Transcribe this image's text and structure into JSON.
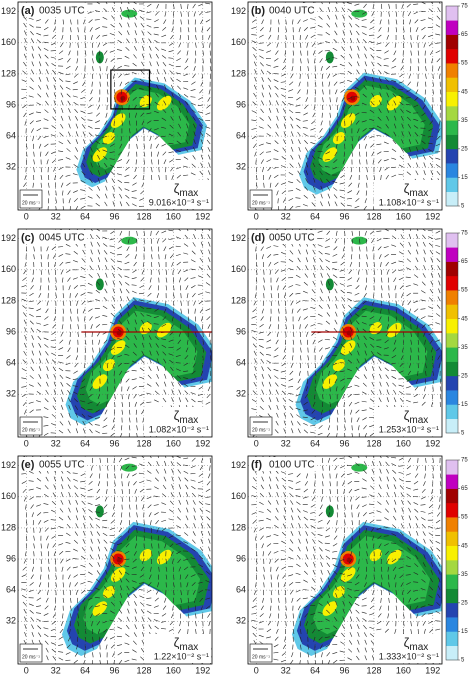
{
  "panels": [
    {
      "label": "(a)",
      "time": "0035 UTC",
      "zeta_symbol": "ζ",
      "zeta_sub": "max",
      "zeta_value": "9.016×10⁻³ s⁻¹",
      "scale_label": "20 ms⁻¹"
    },
    {
      "label": "(b)",
      "time": "0040 UTC",
      "zeta_symbol": "ζ",
      "zeta_sub": "max",
      "zeta_value": "1.108×10⁻² s⁻¹",
      "scale_label": "20 ms⁻¹"
    },
    {
      "label": "(c)",
      "time": "0045 UTC",
      "zeta_symbol": "ζ",
      "zeta_sub": "max",
      "zeta_value": "1.082×10⁻² s⁻¹",
      "scale_label": "20 ms⁻¹"
    },
    {
      "label": "(d)",
      "time": "0050 UTC",
      "zeta_symbol": "ζ",
      "zeta_sub": "max",
      "zeta_value": "1.253×10⁻² s⁻¹",
      "scale_label": "20 ms⁻¹"
    },
    {
      "label": "(e)",
      "time": "0055 UTC",
      "zeta_symbol": "ζ",
      "zeta_sub": "max",
      "zeta_value": "1.22×10⁻² s⁻¹",
      "scale_label": "20 ms⁻¹"
    },
    {
      "label": "(f)",
      "time": "0100 UTC",
      "zeta_symbol": "ζ",
      "zeta_sub": "max",
      "zeta_value": "1.333×10⁻² s⁻¹",
      "scale_label": "20 ms⁻¹"
    }
  ],
  "axes": {
    "xlim": [
      -9,
      202
    ],
    "ylim": [
      -12,
      202
    ],
    "xticks": [
      0,
      32,
      64,
      96,
      128,
      160,
      192
    ],
    "yticks": [
      32,
      64,
      96,
      128,
      160,
      192
    ]
  },
  "colorbar": {
    "lim": [
      5,
      75
    ],
    "ticks": [
      5,
      15,
      25,
      35,
      45,
      55,
      65,
      75
    ],
    "colors": [
      "#c8eef8",
      "#60c8e8",
      "#2a86e0",
      "#2444b0",
      "#138a35",
      "#2cb84a",
      "#a4d840",
      "#f8f000",
      "#f0c000",
      "#f08000",
      "#e00000",
      "#a00000",
      "#c000c0",
      "#e0c0f0"
    ]
  }
}
